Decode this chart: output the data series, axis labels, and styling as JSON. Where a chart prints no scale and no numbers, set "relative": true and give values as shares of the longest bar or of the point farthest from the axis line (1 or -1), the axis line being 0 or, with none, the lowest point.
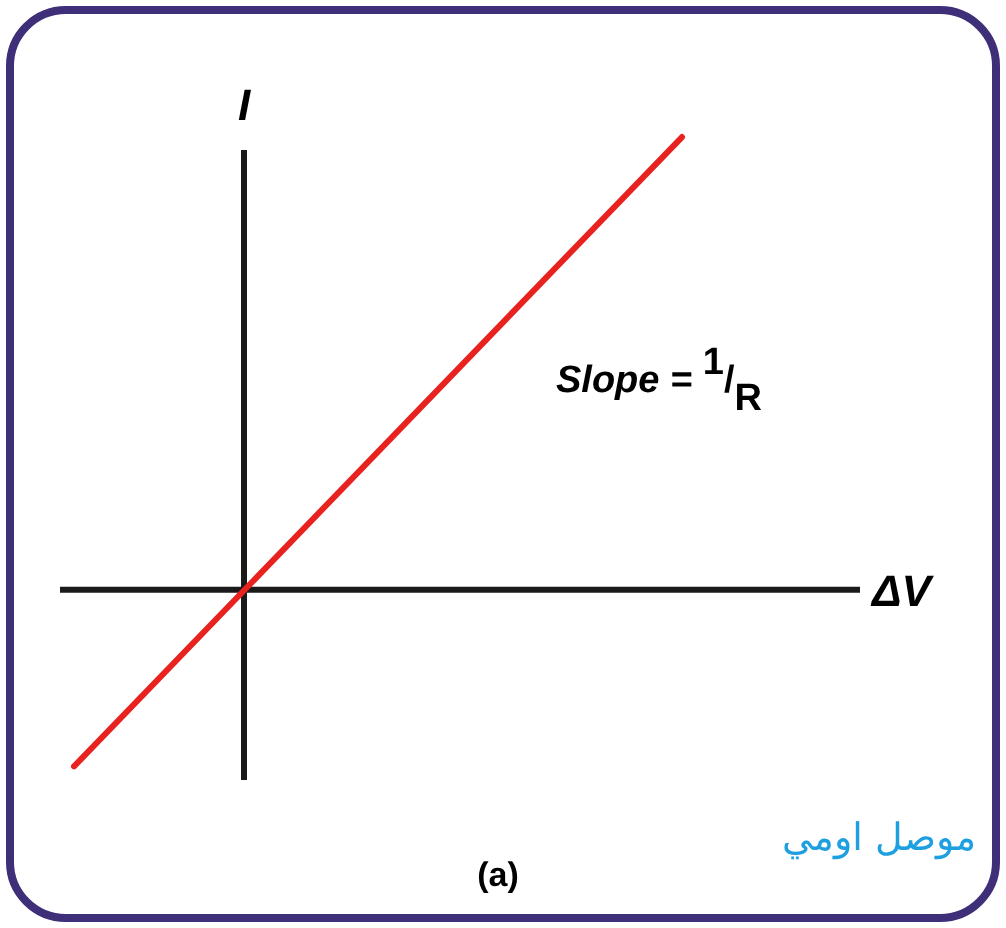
{
  "chart_data": {
    "type": "line",
    "relative": true,
    "xlabel": "ΔV",
    "ylabel": "I",
    "categories": [
      null,
      null
    ],
    "series": [
      {
        "color": "#e8231f",
        "values": [
          -0.39,
          1
        ]
      }
    ],
    "annotations": [
      "Slope = $^{1}$/$_{R}$",
      "(a)",
      "موصل اومي"
    ]
  }
}
